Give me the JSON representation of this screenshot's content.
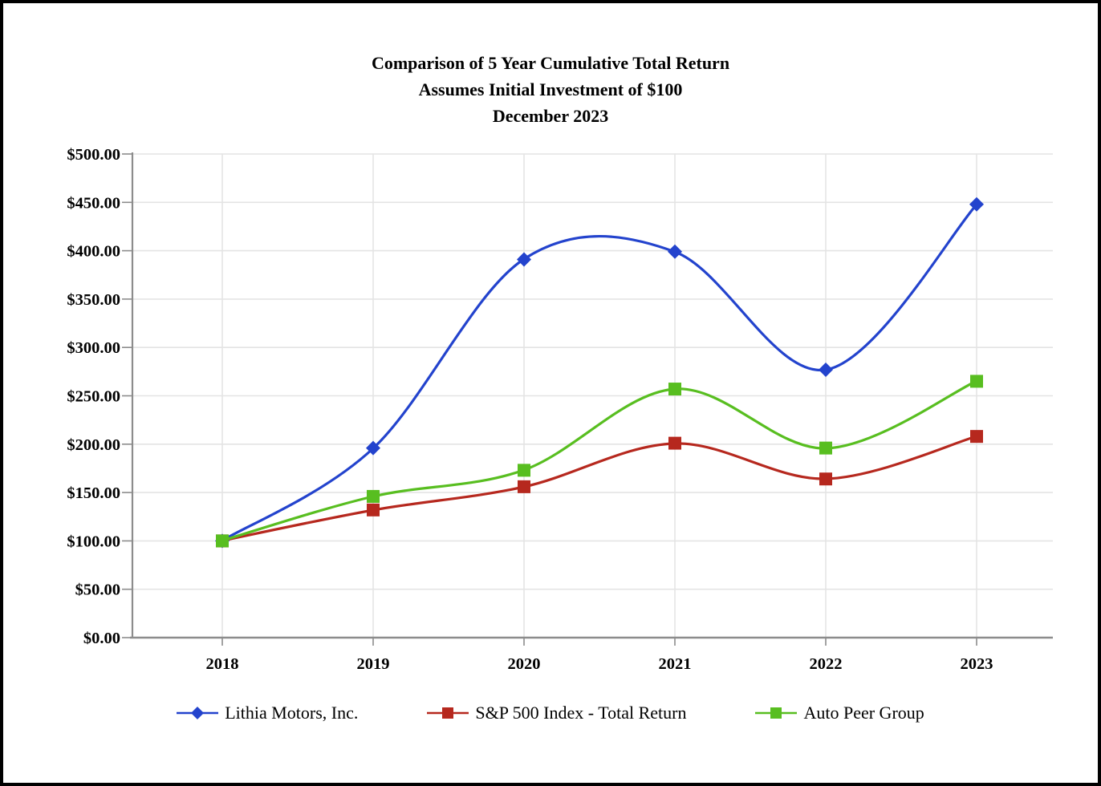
{
  "chart_data": {
    "type": "line",
    "title_lines": [
      "Comparison of 5 Year Cumulative Total Return",
      "Assumes Initial Investment of $100",
      "December 2023"
    ],
    "categories": [
      "2018",
      "2019",
      "2020",
      "2021",
      "2022",
      "2023"
    ],
    "series": [
      {
        "name": "Lithia Motors, Inc.",
        "color": "#2343CD",
        "marker": "diamond",
        "values": [
          100,
          196,
          391,
          399,
          277,
          448
        ]
      },
      {
        "name": "S&P 500 Index - Total Return",
        "color": "#B6281E",
        "marker": "square",
        "values": [
          100,
          132,
          156,
          201,
          164,
          208
        ]
      },
      {
        "name": "Auto Peer Group",
        "color": "#58BE20",
        "marker": "square",
        "values": [
          100,
          146,
          173,
          257,
          196,
          265
        ]
      }
    ],
    "ylim": [
      0,
      500
    ],
    "y_tick_step": 50,
    "y_tick_labels": [
      "$0.00",
      "$50.00",
      "$100.00",
      "$150.00",
      "$200.00",
      "$250.00",
      "$300.00",
      "$350.00",
      "$400.00",
      "$450.00",
      "$500.00"
    ],
    "grid": true,
    "line_smoothing": true,
    "legend_position": "bottom"
  },
  "style": {
    "grid_color": "#E4E4E4",
    "axis_color": "#8C8C8C",
    "text_color": "#000000",
    "background": "#FFFFFF",
    "border_color": "#000000"
  }
}
